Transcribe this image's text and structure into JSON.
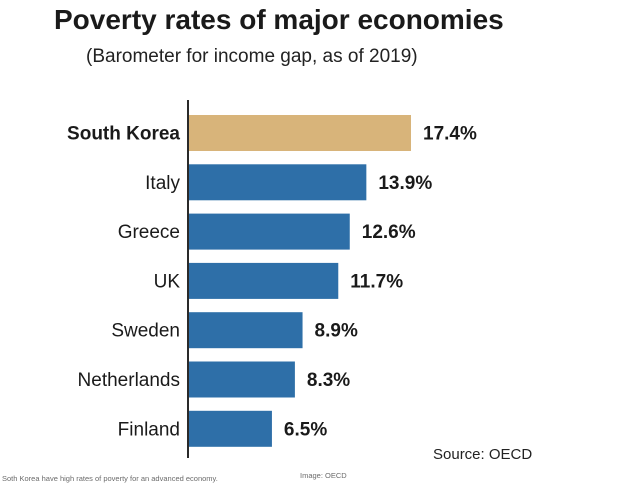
{
  "chart_data": {
    "type": "bar",
    "orientation": "horizontal",
    "title": "Poverty rates of major economies",
    "subtitle": "(Barometer for income gap, as of 2019)",
    "categories": [
      "South Korea",
      "Italy",
      "Greece",
      "UK",
      "Sweden",
      "Netherlands",
      "Finland"
    ],
    "values": [
      17.4,
      13.9,
      12.6,
      11.7,
      8.9,
      8.3,
      6.5
    ],
    "value_labels": [
      "17.4%",
      "13.9%",
      "12.6%",
      "11.7%",
      "8.9%",
      "8.3%",
      "6.5%"
    ],
    "unit": "%",
    "highlight_category": "South Korea",
    "colors": {
      "highlight": "#d8b47a",
      "default": "#2e6fa8",
      "axis": "#2a2a2a"
    },
    "xlim": [
      0,
      17.4
    ],
    "grid": false,
    "source": "Source: OECD"
  },
  "page": {
    "caption": "Soth Korea have high rates of poverty for an advanced economy.",
    "credit": "Image: OECD"
  }
}
